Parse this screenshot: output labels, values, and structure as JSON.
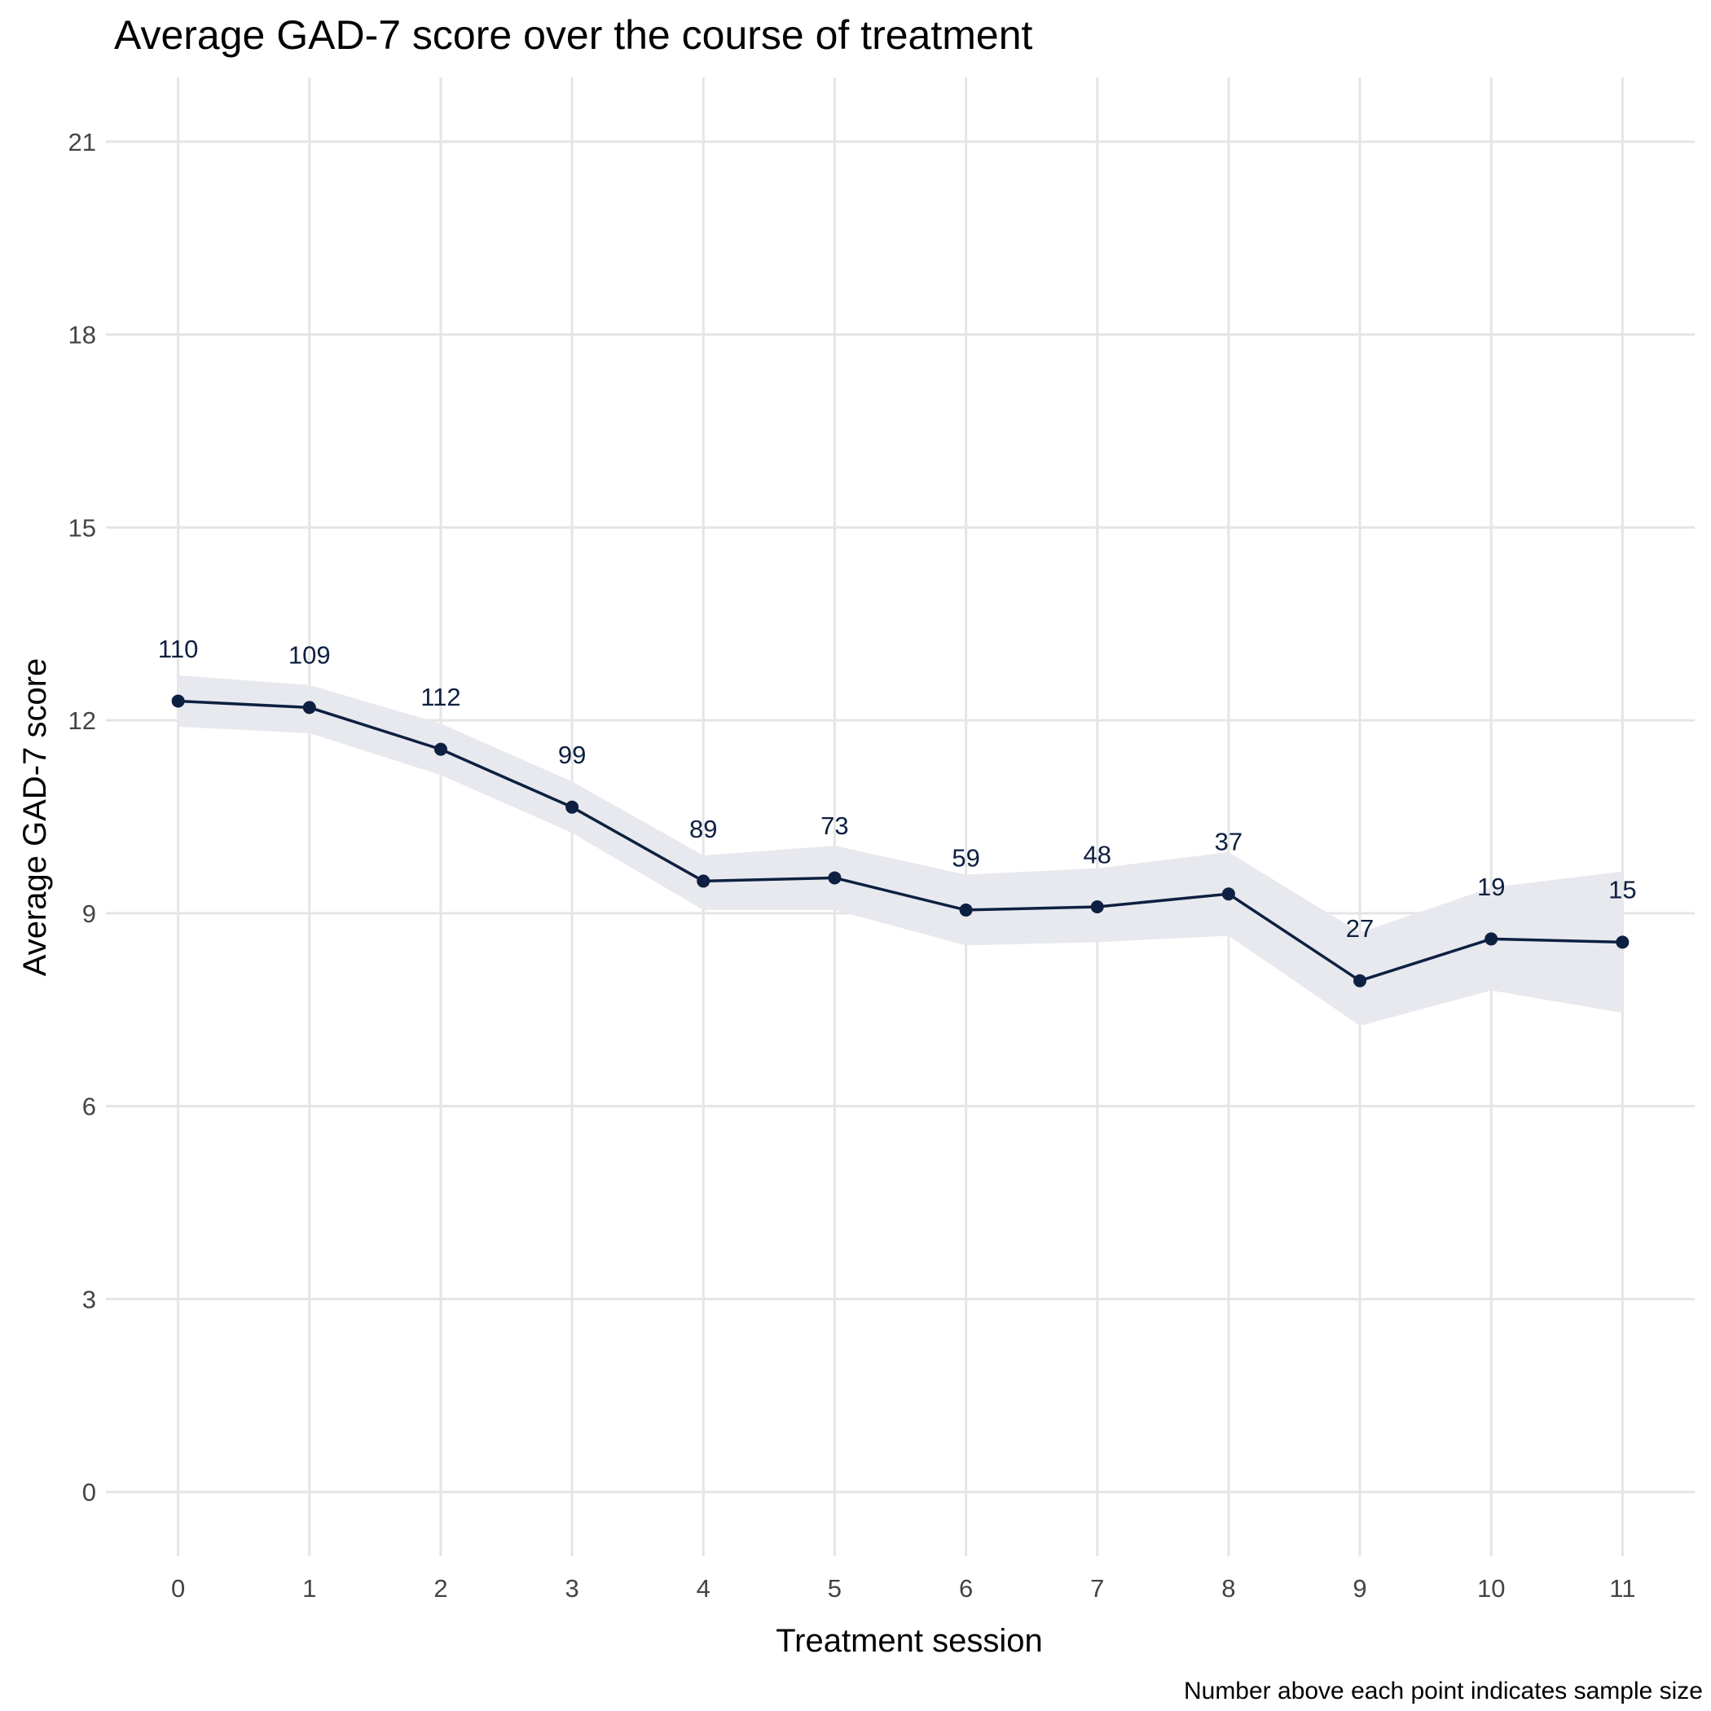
{
  "chart_data": {
    "type": "line",
    "title": "Average GAD-7 score over the course of treatment",
    "xlabel": "Treatment session",
    "ylabel": "Average GAD-7 score",
    "caption": "Number above each point indicates sample size",
    "x": [
      0,
      1,
      2,
      3,
      4,
      5,
      6,
      7,
      8,
      9,
      10,
      11
    ],
    "xticks": [
      "0",
      "1",
      "2",
      "3",
      "4",
      "5",
      "6",
      "7",
      "8",
      "9",
      "10",
      "11"
    ],
    "yticks": [
      "0",
      "3",
      "6",
      "9",
      "12",
      "15",
      "18",
      "21"
    ],
    "ylim": [
      -1,
      22
    ],
    "xlim": [
      -0.55,
      11.55
    ],
    "grid": true,
    "legend": "none",
    "series": [
      {
        "values": [
          12.3,
          12.2,
          11.55,
          10.65,
          9.5,
          9.55,
          9.05,
          9.1,
          9.3,
          7.95,
          8.6,
          8.55
        ],
        "lower": [
          11.9,
          11.8,
          11.15,
          10.25,
          9.05,
          9.05,
          8.5,
          8.55,
          8.65,
          7.25,
          7.8,
          7.45
        ],
        "upper": [
          12.7,
          12.55,
          11.95,
          11.05,
          9.9,
          10.05,
          9.6,
          9.7,
          9.95,
          8.7,
          9.4,
          9.65
        ],
        "n": [
          "110",
          "109",
          "112",
          "99",
          "89",
          "73",
          "59",
          "48",
          "37",
          "27",
          "19",
          "15"
        ]
      }
    ],
    "colors": {
      "line": "#0e2041",
      "ribbon": "#e8e9ee",
      "grid": "#e5e5e5"
    }
  }
}
